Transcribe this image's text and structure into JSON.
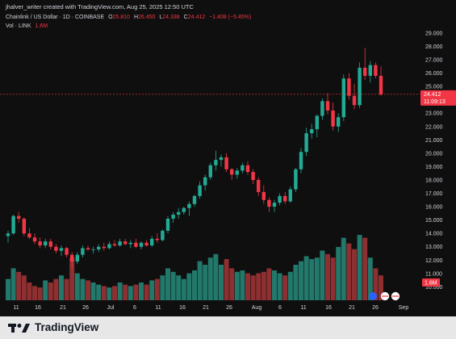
{
  "header": {
    "credit": "jhalver_writer created with TradingView.com, Aug 25, 2025 12:50 UTC"
  },
  "legend": {
    "symbol": "Chainlink / US Dollar · 1D · COINBASE",
    "o_label": "O",
    "o_value": "25.810",
    "h_label": "H",
    "h_value": "26.450",
    "l_label": "L",
    "l_value": "24.338",
    "c_label": "C",
    "c_value": "24.412",
    "change": "−1.408 (−5.45%)",
    "vol_label": "Vol · LINK",
    "vol_value": "1.6M"
  },
  "price_badge": {
    "value": "24.412",
    "countdown": "11:09:13"
  },
  "vol_badge": "1.6M",
  "brand": {
    "name": "TradingView"
  },
  "colors": {
    "up": "#22ab94",
    "down": "#f23645",
    "up_vol": "#22786b",
    "down_vol": "#8e2f31",
    "bg": "#0f0f0f",
    "text": "#d1d4dc"
  },
  "chart_data": {
    "type": "candlestick",
    "symbol": "LINKUSD",
    "exchange": "COINBASE",
    "interval": "1D",
    "start_date": "2025-06-07",
    "y_ticks": [
      "29.000",
      "28.000",
      "27.000",
      "26.000",
      "25.000",
      "24.000",
      "23.000",
      "22.000",
      "21.000",
      "20.000",
      "19.000",
      "18.000",
      "17.000",
      "16.000",
      "15.000",
      "14.000",
      "13.000",
      "12.000",
      "11.000",
      "10.000"
    ],
    "x_ticks": [
      "11",
      "16",
      "21",
      "26",
      "Jul",
      "6",
      "11",
      "16",
      "21",
      "26",
      "Aug",
      "6",
      "11",
      "16",
      "21",
      "26",
      "Sep"
    ],
    "ylim": [
      9.6,
      29.6
    ],
    "candles": [
      {
        "o": 13.8,
        "h": 14.2,
        "l": 13.3,
        "c": 14.0
      },
      {
        "o": 14.0,
        "h": 15.4,
        "l": 13.9,
        "c": 15.3
      },
      {
        "o": 15.3,
        "h": 15.6,
        "l": 14.8,
        "c": 15.1
      },
      {
        "o": 15.1,
        "h": 15.2,
        "l": 13.8,
        "c": 14.0
      },
      {
        "o": 14.0,
        "h": 14.4,
        "l": 13.6,
        "c": 13.7
      },
      {
        "o": 13.7,
        "h": 14.0,
        "l": 13.2,
        "c": 13.4
      },
      {
        "o": 13.4,
        "h": 13.7,
        "l": 12.9,
        "c": 13.1
      },
      {
        "o": 13.1,
        "h": 13.6,
        "l": 12.9,
        "c": 13.4
      },
      {
        "o": 13.4,
        "h": 13.6,
        "l": 12.8,
        "c": 13.0
      },
      {
        "o": 13.0,
        "h": 13.2,
        "l": 12.5,
        "c": 12.7
      },
      {
        "o": 12.7,
        "h": 13.1,
        "l": 12.3,
        "c": 12.9
      },
      {
        "o": 12.9,
        "h": 13.0,
        "l": 12.2,
        "c": 12.4
      },
      {
        "o": 12.4,
        "h": 12.6,
        "l": 11.4,
        "c": 11.9
      },
      {
        "o": 11.9,
        "h": 12.6,
        "l": 11.7,
        "c": 12.4
      },
      {
        "o": 12.4,
        "h": 13.1,
        "l": 12.2,
        "c": 12.9
      },
      {
        "o": 12.9,
        "h": 13.1,
        "l": 12.7,
        "c": 12.8
      },
      {
        "o": 12.8,
        "h": 13.0,
        "l": 12.5,
        "c": 12.8
      },
      {
        "o": 12.8,
        "h": 13.2,
        "l": 12.6,
        "c": 13.0
      },
      {
        "o": 13.0,
        "h": 13.3,
        "l": 12.7,
        "c": 12.9
      },
      {
        "o": 12.9,
        "h": 13.4,
        "l": 12.8,
        "c": 13.2
      },
      {
        "o": 13.2,
        "h": 13.5,
        "l": 13.0,
        "c": 13.1
      },
      {
        "o": 13.1,
        "h": 13.6,
        "l": 13.0,
        "c": 13.4
      },
      {
        "o": 13.4,
        "h": 13.6,
        "l": 13.1,
        "c": 13.2
      },
      {
        "o": 13.2,
        "h": 13.5,
        "l": 12.9,
        "c": 13.3
      },
      {
        "o": 13.3,
        "h": 13.6,
        "l": 12.9,
        "c": 13.0
      },
      {
        "o": 13.0,
        "h": 13.4,
        "l": 12.8,
        "c": 13.3
      },
      {
        "o": 13.3,
        "h": 13.5,
        "l": 13.0,
        "c": 13.1
      },
      {
        "o": 13.1,
        "h": 13.8,
        "l": 13.0,
        "c": 13.6
      },
      {
        "o": 13.6,
        "h": 14.0,
        "l": 13.3,
        "c": 13.5
      },
      {
        "o": 13.5,
        "h": 14.3,
        "l": 13.4,
        "c": 14.2
      },
      {
        "o": 14.2,
        "h": 15.3,
        "l": 14.0,
        "c": 15.1
      },
      {
        "o": 15.1,
        "h": 15.6,
        "l": 14.8,
        "c": 15.4
      },
      {
        "o": 15.4,
        "h": 15.9,
        "l": 15.1,
        "c": 15.6
      },
      {
        "o": 15.6,
        "h": 16.0,
        "l": 15.4,
        "c": 15.9
      },
      {
        "o": 15.9,
        "h": 16.4,
        "l": 15.3,
        "c": 16.2
      },
      {
        "o": 16.2,
        "h": 16.9,
        "l": 16.0,
        "c": 16.8
      },
      {
        "o": 16.8,
        "h": 17.9,
        "l": 16.6,
        "c": 17.6
      },
      {
        "o": 17.6,
        "h": 18.4,
        "l": 17.2,
        "c": 18.2
      },
      {
        "o": 18.2,
        "h": 19.3,
        "l": 18.0,
        "c": 19.1
      },
      {
        "o": 19.1,
        "h": 20.2,
        "l": 18.7,
        "c": 19.5
      },
      {
        "o": 19.5,
        "h": 19.9,
        "l": 19.0,
        "c": 19.7
      },
      {
        "o": 19.7,
        "h": 20.0,
        "l": 18.6,
        "c": 18.8
      },
      {
        "o": 18.8,
        "h": 18.9,
        "l": 18.0,
        "c": 18.4
      },
      {
        "o": 18.4,
        "h": 18.9,
        "l": 18.1,
        "c": 18.7
      },
      {
        "o": 18.7,
        "h": 19.3,
        "l": 18.5,
        "c": 19.1
      },
      {
        "o": 19.1,
        "h": 19.4,
        "l": 18.4,
        "c": 18.6
      },
      {
        "o": 18.6,
        "h": 18.8,
        "l": 17.7,
        "c": 18.0
      },
      {
        "o": 18.0,
        "h": 18.2,
        "l": 16.8,
        "c": 17.1
      },
      {
        "o": 17.1,
        "h": 17.6,
        "l": 16.2,
        "c": 16.5
      },
      {
        "o": 16.5,
        "h": 16.7,
        "l": 15.6,
        "c": 16.0
      },
      {
        "o": 16.0,
        "h": 16.5,
        "l": 15.6,
        "c": 16.3
      },
      {
        "o": 16.3,
        "h": 17.0,
        "l": 16.1,
        "c": 16.8
      },
      {
        "o": 16.8,
        "h": 17.1,
        "l": 16.2,
        "c": 16.4
      },
      {
        "o": 16.4,
        "h": 17.5,
        "l": 16.3,
        "c": 17.3
      },
      {
        "o": 17.3,
        "h": 18.9,
        "l": 17.1,
        "c": 18.8
      },
      {
        "o": 18.8,
        "h": 20.4,
        "l": 18.5,
        "c": 20.1
      },
      {
        "o": 20.1,
        "h": 21.9,
        "l": 19.8,
        "c": 21.5
      },
      {
        "o": 21.5,
        "h": 22.2,
        "l": 21.1,
        "c": 21.8
      },
      {
        "o": 21.8,
        "h": 22.9,
        "l": 21.2,
        "c": 22.8
      },
      {
        "o": 22.8,
        "h": 24.1,
        "l": 22.5,
        "c": 23.9
      },
      {
        "o": 23.9,
        "h": 24.5,
        "l": 22.9,
        "c": 23.2
      },
      {
        "o": 23.2,
        "h": 23.8,
        "l": 21.7,
        "c": 22.0
      },
      {
        "o": 22.0,
        "h": 23.0,
        "l": 21.6,
        "c": 22.7
      },
      {
        "o": 22.7,
        "h": 25.9,
        "l": 22.4,
        "c": 25.6
      },
      {
        "o": 25.6,
        "h": 26.0,
        "l": 24.0,
        "c": 24.3
      },
      {
        "o": 24.3,
        "h": 25.2,
        "l": 23.3,
        "c": 23.6
      },
      {
        "o": 23.6,
        "h": 26.8,
        "l": 23.4,
        "c": 26.4
      },
      {
        "o": 26.4,
        "h": 27.9,
        "l": 25.5,
        "c": 25.8
      },
      {
        "o": 25.8,
        "h": 26.9,
        "l": 25.3,
        "c": 26.6
      },
      {
        "o": 26.6,
        "h": 26.8,
        "l": 25.6,
        "c": 25.8
      },
      {
        "o": 25.8,
        "h": 26.5,
        "l": 24.3,
        "c": 24.4
      }
    ],
    "volume_scale": "relative (0-1)",
    "volumes": [
      0.3,
      0.45,
      0.4,
      0.35,
      0.25,
      0.2,
      0.18,
      0.28,
      0.25,
      0.3,
      0.35,
      0.3,
      0.6,
      0.38,
      0.3,
      0.28,
      0.25,
      0.22,
      0.2,
      0.18,
      0.2,
      0.25,
      0.22,
      0.2,
      0.22,
      0.25,
      0.22,
      0.28,
      0.3,
      0.35,
      0.45,
      0.4,
      0.35,
      0.3,
      0.38,
      0.42,
      0.55,
      0.5,
      0.6,
      0.65,
      0.5,
      0.58,
      0.45,
      0.4,
      0.42,
      0.38,
      0.35,
      0.38,
      0.4,
      0.45,
      0.42,
      0.38,
      0.35,
      0.4,
      0.5,
      0.55,
      0.62,
      0.58,
      0.6,
      0.7,
      0.65,
      0.6,
      0.75,
      0.88,
      0.8,
      0.72,
      0.92,
      0.88,
      0.6,
      0.45,
      0.35
    ]
  }
}
